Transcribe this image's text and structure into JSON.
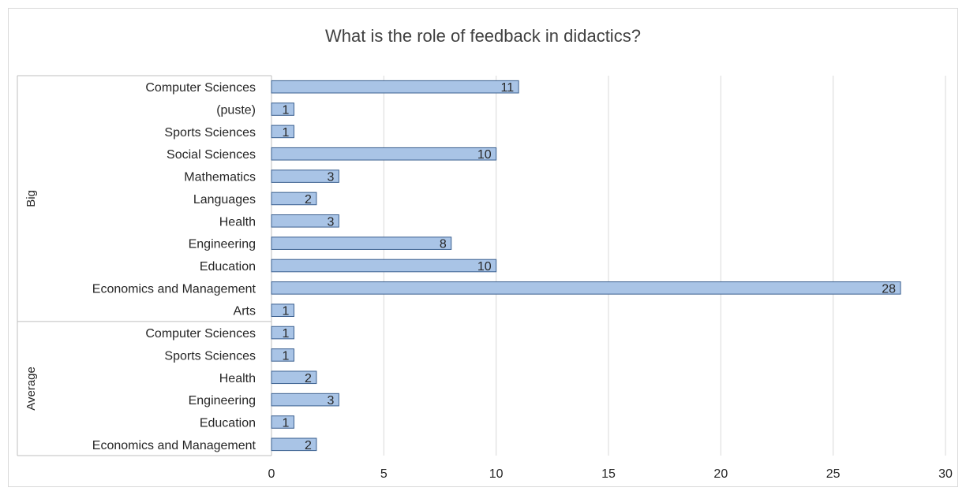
{
  "chart_data": {
    "type": "bar",
    "orientation": "horizontal",
    "title": "What is the role of feedback in didactics?",
    "xlabel": "",
    "ylabel": "",
    "xlim": [
      0,
      30
    ],
    "x_ticks": [
      "0",
      "5",
      "10",
      "15",
      "20",
      "25",
      "30"
    ],
    "grid": true,
    "legend": "none",
    "bar_color": "#a9c4e6",
    "bar_border_color": "#3a5f8f",
    "groups": [
      {
        "name": "Big",
        "items": [
          {
            "label": "Computer Sciences",
            "value": 11
          },
          {
            "label": "(puste)",
            "value": 1
          },
          {
            "label": "Sports Sciences",
            "value": 1
          },
          {
            "label": "Social Sciences",
            "value": 10
          },
          {
            "label": "Mathematics",
            "value": 3
          },
          {
            "label": "Languages",
            "value": 2
          },
          {
            "label": "Health",
            "value": 3
          },
          {
            "label": "Engineering",
            "value": 8
          },
          {
            "label": "Education",
            "value": 10
          },
          {
            "label": "Economics and Management",
            "value": 28
          },
          {
            "label": "Arts",
            "value": 1
          }
        ]
      },
      {
        "name": "Average",
        "items": [
          {
            "label": "Computer Sciences",
            "value": 1
          },
          {
            "label": "Sports Sciences",
            "value": 1
          },
          {
            "label": "Health",
            "value": 2
          },
          {
            "label": "Engineering",
            "value": 3
          },
          {
            "label": "Education",
            "value": 1
          },
          {
            "label": "Economics and Management",
            "value": 2
          }
        ]
      }
    ]
  }
}
